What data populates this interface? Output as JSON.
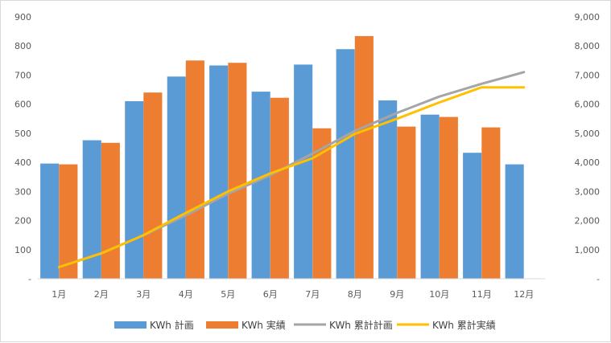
{
  "chart_data": {
    "type": "bar",
    "categories": [
      "1月",
      "2月",
      "3月",
      "4月",
      "5月",
      "6月",
      "7月",
      "8月",
      "9月",
      "10月",
      "11月",
      "12月"
    ],
    "series": [
      {
        "name": "KWh 計画",
        "type": "bar",
        "axis": "left",
        "color": "#5b9bd5",
        "values": [
          396,
          476,
          610,
          695,
          733,
          643,
          736,
          789,
          613,
          564,
          433,
          393
        ]
      },
      {
        "name": "KWh 実績",
        "type": "bar",
        "axis": "left",
        "color": "#ed7d31",
        "values": [
          393,
          467,
          640,
          750,
          742,
          622,
          517,
          834,
          523,
          556,
          520,
          null
        ]
      },
      {
        "name": "KWh 累計計画",
        "type": "line",
        "axis": "right",
        "color": "#a5a5a5",
        "values": [
          400,
          880,
          1490,
          2180,
          2920,
          3560,
          4300,
          5080,
          5700,
          6260,
          6700,
          7100
        ]
      },
      {
        "name": "KWh 累計実績",
        "type": "line",
        "axis": "right",
        "color": "#ffc000",
        "values": [
          400,
          870,
          1500,
          2260,
          3000,
          3620,
          4140,
          4980,
          5500,
          6060,
          6580,
          6580
        ]
      }
    ],
    "y_left": {
      "min": 0,
      "max": 900,
      "step": 100,
      "tick_labels": [
        "-",
        "100",
        "200",
        "300",
        "400",
        "500",
        "600",
        "700",
        "800",
        "900"
      ]
    },
    "y_right": {
      "min": 0,
      "max": 9000,
      "step": 1000,
      "tick_labels": [
        "-",
        "1,000",
        "2,000",
        "3,000",
        "4,000",
        "5,000",
        "6,000",
        "7,000",
        "8,000",
        "9,000"
      ]
    },
    "grid": false,
    "legend_position": "bottom"
  }
}
